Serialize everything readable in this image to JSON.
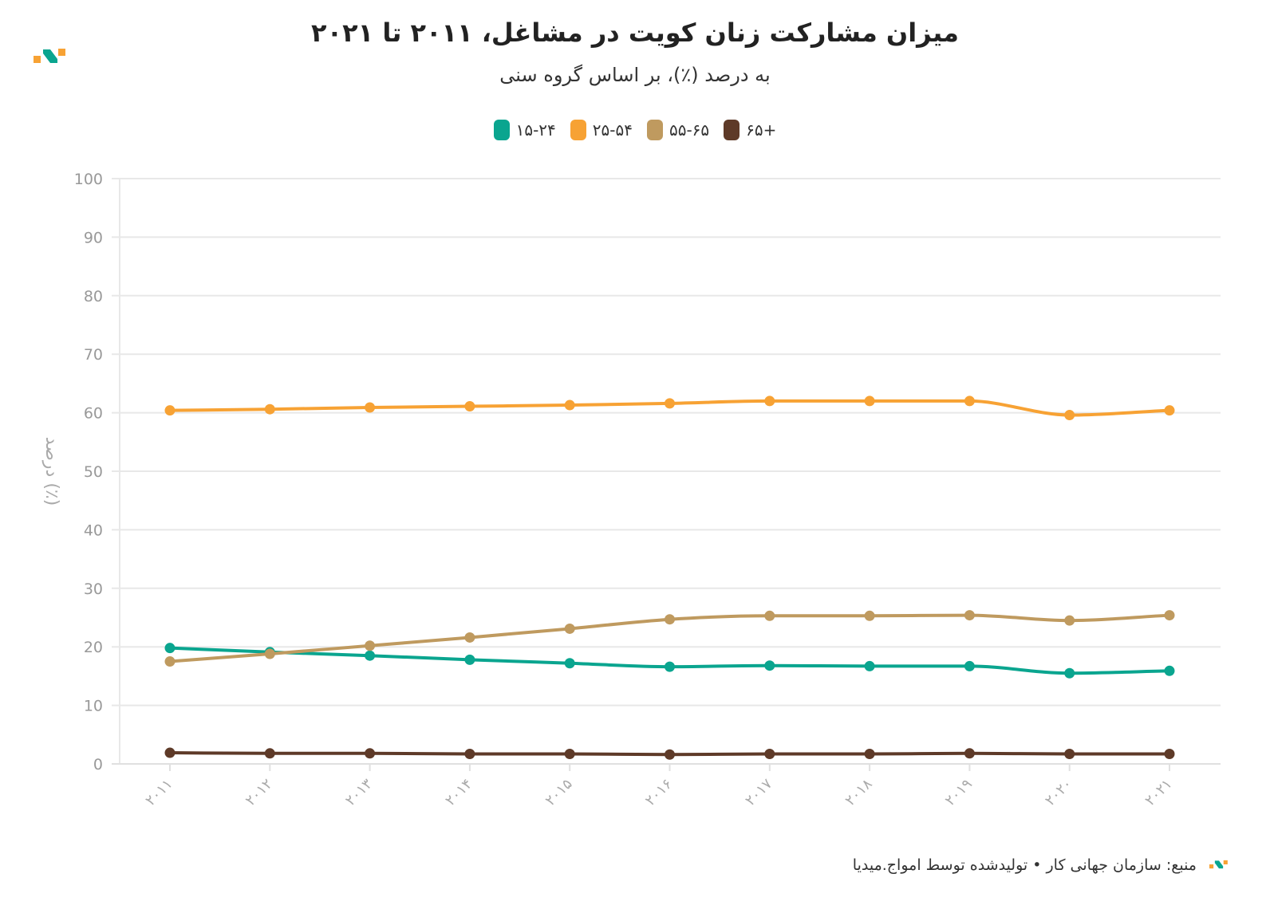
{
  "header": {
    "title": "میزان مشارکت زنان کویت در مشاغل، ۲۰۱۱ تا ۲۰۲۱",
    "subtitle": "به درصد (٪)، بر اساس گروه سنی"
  },
  "footer": {
    "source": "منبع: سازمان جهانی کار • تولیدشده توسط امواج.میدیا"
  },
  "colors": {
    "logo_orange": "#f7a234",
    "logo_teal": "#0aa58f"
  },
  "chart_data": {
    "type": "line",
    "title": "میزان مشارکت زنان کویت در مشاغل، ۲۰۱۱ تا ۲۰۲۱",
    "subtitle": "به درصد (٪)، بر اساس گروه سنی",
    "xlabel": "",
    "ylabel": "درصد (٪)",
    "ylim": [
      0,
      100
    ],
    "yticks": [
      "0",
      "10",
      "20",
      "30",
      "40",
      "50",
      "60",
      "70",
      "80",
      "90",
      "100"
    ],
    "x": [
      2011,
      2012,
      2013,
      2014,
      2015,
      2016,
      2017,
      2018,
      2019,
      2020,
      2021
    ],
    "x_labels": [
      "۲۰۱۱",
      "۲۰۱۲",
      "۲۰۱۳",
      "۲۰۱۴",
      "۲۰۱۵",
      "۲۰۱۶",
      "۲۰۱۷",
      "۲۰۱۸",
      "۲۰۱۹",
      "۲۰۲۰",
      "۲۰۲۱"
    ],
    "grid": true,
    "legend_position": "top-center",
    "series": [
      {
        "name": "۱۵-۲۴",
        "color": "#0aa58f",
        "values": [
          19.8,
          19.1,
          18.5,
          17.8,
          17.2,
          16.6,
          16.8,
          16.7,
          16.7,
          15.5,
          15.9
        ]
      },
      {
        "name": "۲۵-۵۴",
        "color": "#f7a234",
        "values": [
          60.4,
          60.6,
          60.9,
          61.1,
          61.3,
          61.6,
          62.0,
          62.0,
          62.0,
          59.6,
          60.4
        ]
      },
      {
        "name": "۵۵-۶۵",
        "color": "#bf9a5f",
        "values": [
          17.5,
          18.8,
          20.2,
          21.6,
          23.1,
          24.7,
          25.3,
          25.3,
          25.4,
          24.5,
          25.4
        ]
      },
      {
        "name": "۶۵+",
        "color": "#5e3a28",
        "values": [
          1.9,
          1.8,
          1.8,
          1.7,
          1.7,
          1.6,
          1.7,
          1.7,
          1.8,
          1.7,
          1.7
        ]
      }
    ]
  }
}
